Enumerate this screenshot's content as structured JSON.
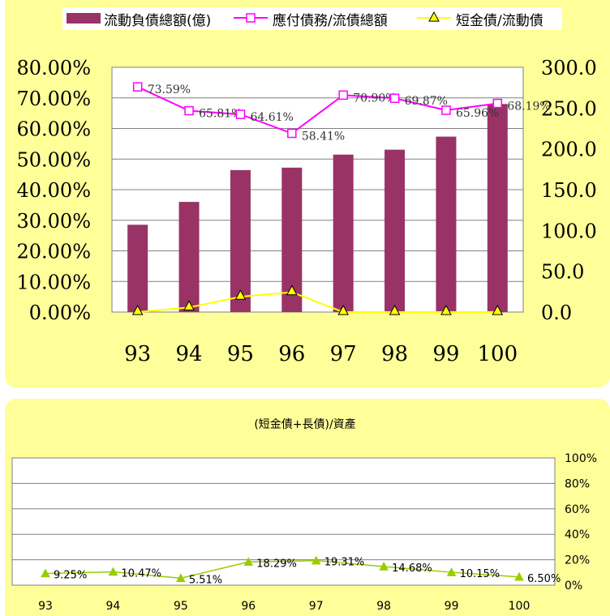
{
  "colors": {
    "panel_background": "#ffff99",
    "bar": "#993366",
    "payable_line": "#ff00ff",
    "short_debt_line": "#ffff00",
    "bottom_line": "#99cc00"
  },
  "chart_data": [
    {
      "type": "bar",
      "title": "",
      "categories": [
        "93",
        "94",
        "95",
        "96",
        "97",
        "98",
        "99",
        "100"
      ],
      "legend_position": "top",
      "grid": true,
      "y_left": {
        "ticks": [
          "80.00%",
          "70.00%",
          "60.00%",
          "50.00%",
          "40.00%",
          "30.00%",
          "20.00%",
          "10.00%",
          "0.00%"
        ],
        "range": [
          0,
          80
        ]
      },
      "y_right": {
        "ticks": [
          "300.0",
          "250.0",
          "200.0",
          "150.0",
          "100.0",
          "50.0",
          "0.0"
        ],
        "range": [
          0,
          300
        ]
      },
      "series": [
        {
          "name": "流動負債總額(億)",
          "type": "bar",
          "axis": "right",
          "values": [
            107,
            135,
            174,
            177,
            193,
            199,
            215,
            255
          ]
        },
        {
          "name": "應付債務/流債總額",
          "type": "line",
          "axis": "left",
          "marker": "square",
          "values": [
            73.59,
            65.81,
            64.61,
            58.41,
            70.9,
            69.87,
            65.96,
            68.19
          ],
          "labels": [
            "73.59%",
            "65.81%",
            "64.61%",
            "58.41%",
            "70.90%",
            "69.87%",
            "65.96%",
            "68.19%"
          ]
        },
        {
          "name": "短金債/流動債",
          "type": "line",
          "axis": "left",
          "marker": "triangle",
          "values": [
            0,
            1.5,
            5,
            6.5,
            0,
            0,
            0,
            0
          ]
        }
      ]
    },
    {
      "type": "line",
      "title": "(短金債+長債)/資產",
      "categories": [
        "93",
        "94",
        "95",
        "96",
        "97",
        "98",
        "99",
        "100"
      ],
      "grid": true,
      "y_right": {
        "ticks": [
          "100%",
          "80%",
          "60%",
          "40%",
          "20%",
          "0%"
        ],
        "range": [
          0,
          100
        ]
      },
      "series": [
        {
          "type": "line",
          "marker": "triangle",
          "values": [
            9.25,
            10.47,
            5.51,
            18.29,
            19.31,
            14.68,
            10.15,
            6.5
          ],
          "labels": [
            "9.25%",
            "10.47%",
            "5.51%",
            "18.29%",
            "19.31%",
            "14.68%",
            "10.15%",
            "6.50%"
          ]
        }
      ]
    }
  ]
}
